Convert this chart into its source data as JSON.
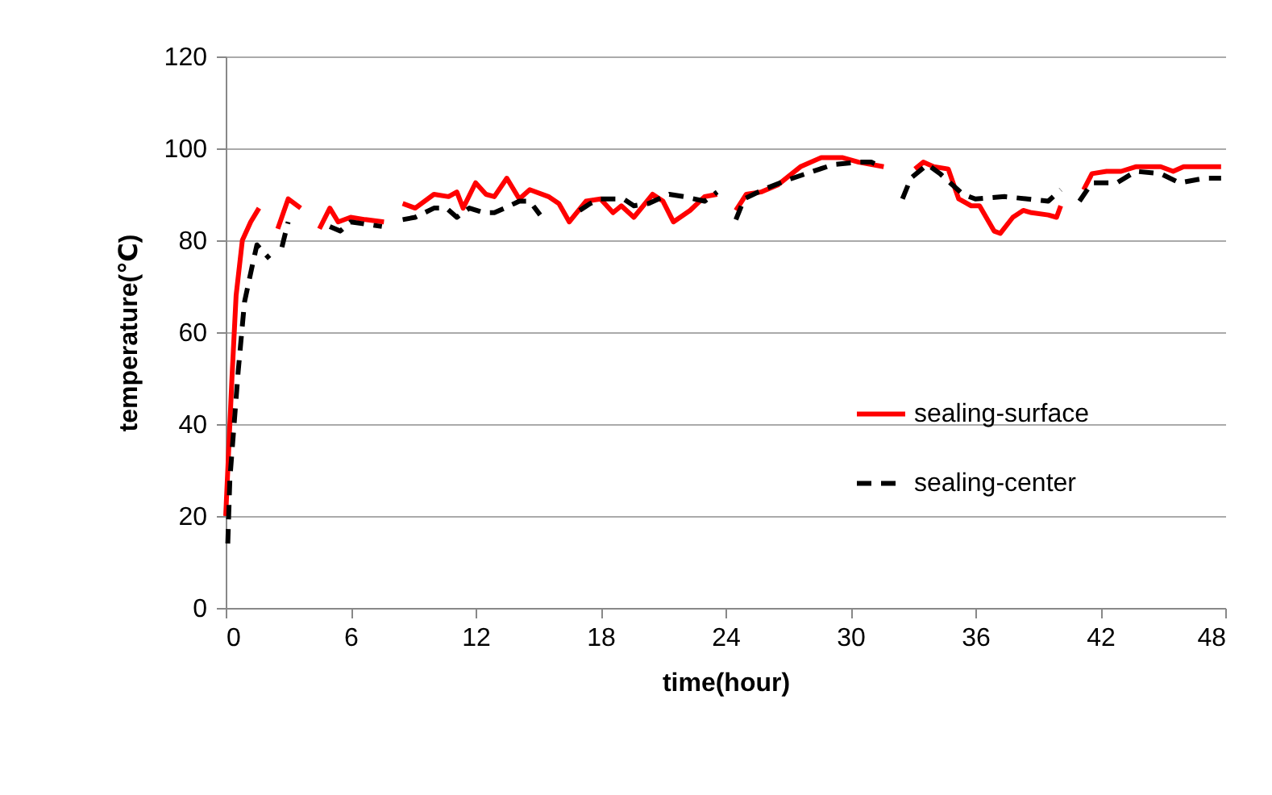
{
  "chart_data": {
    "type": "line",
    "xlabel": "time(hour)",
    "ylabel": "temperature(℃)",
    "xlim": [
      0,
      48
    ],
    "xticks": [
      0,
      6,
      12,
      18,
      24,
      30,
      36,
      42,
      48
    ],
    "ylim": [
      0,
      120
    ],
    "yticks": [
      0,
      20,
      40,
      60,
      80,
      100,
      120
    ],
    "grid": "y",
    "legend": "right",
    "marker": "none",
    "series": [
      {
        "name": "sealing-surface",
        "color": "#ff0000",
        "line_style": "solid",
        "x": [
          0,
          0.3,
          0.5,
          0.8,
          1.2,
          1.6,
          2,
          2.5,
          3,
          3.6,
          4,
          4.5,
          5,
          5.4,
          6,
          6.7,
          7.6,
          8,
          8.5,
          9.1,
          10,
          10.7,
          11.1,
          11.4,
          12,
          12.5,
          12.9,
          13.5,
          14.1,
          14.6,
          15.5,
          16,
          16.5,
          17.3,
          18,
          18.6,
          19,
          19.6,
          20.5,
          21,
          21.5,
          22.3,
          23,
          23.6,
          24,
          24.5,
          25,
          25.7,
          26.5,
          27.6,
          28.6,
          29.6,
          30.4,
          31.6,
          32.5,
          33.1,
          33.5,
          34,
          34.7,
          35.2,
          35.8,
          36.2,
          36.9,
          37.2,
          37.8,
          38.3,
          38.7,
          39.5,
          39.9,
          40.1,
          40.7,
          41.2,
          41.6,
          42.3,
          43,
          43.7,
          44.9,
          45.5,
          46,
          47.8
        ],
        "values": [
          20,
          50,
          68,
          80,
          84,
          87,
          null,
          82.5,
          89,
          87,
          null,
          82.5,
          87,
          84,
          85,
          84.5,
          84,
          null,
          88,
          87,
          90,
          89.5,
          90.5,
          87,
          92.5,
          90,
          89.5,
          93.5,
          89,
          91,
          89.5,
          88,
          84,
          88.5,
          89,
          86,
          87.5,
          85,
          90,
          88.5,
          84,
          86.5,
          89.5,
          90,
          null,
          86.5,
          90,
          90.5,
          92,
          96,
          98,
          98,
          97,
          96,
          null,
          95.5,
          97,
          96,
          95.5,
          89,
          87.5,
          87.5,
          82,
          81.5,
          85,
          86.5,
          86,
          85.5,
          85,
          87.5,
          null,
          91,
          94.5,
          95,
          95,
          96,
          96,
          95,
          96,
          96
        ]
      },
      {
        "name": "sealing-center",
        "color": "#000000",
        "line_style": "dashed",
        "x": [
          0.1,
          0.2,
          0.6,
          0.9,
          1.3,
          1.5,
          2.1,
          2.4,
          2.7,
          3,
          4,
          5,
          5.5,
          6,
          7.5,
          8,
          8.5,
          9.1,
          10,
          10.6,
          11.1,
          11.7,
          12.4,
          12.9,
          13.4,
          14.1,
          14.6,
          15.1,
          16,
          17,
          17.5,
          18,
          19.1,
          19.6,
          20.3,
          21.3,
          22,
          23,
          23.6,
          24,
          24.5,
          24.9,
          25.8,
          26.9,
          28.2,
          29.2,
          30.4,
          31,
          31.5,
          32,
          32.5,
          32.9,
          33.7,
          34.3,
          35.4,
          36,
          37.4,
          38.5,
          39.5,
          40.1,
          40.5,
          41,
          41.6,
          42.8,
          43.7,
          44.9,
          45.8,
          47,
          47.8
        ],
        "values": [
          14,
          28,
          51.5,
          66.5,
          75,
          79,
          76,
          null,
          78.5,
          84,
          null,
          83,
          82,
          84,
          83,
          null,
          84.5,
          85,
          87,
          87,
          85,
          87,
          86,
          86,
          87,
          88.5,
          88.5,
          85.5,
          null,
          86.5,
          88,
          89,
          89,
          87.5,
          88,
          90,
          89.5,
          88.5,
          90.5,
          null,
          84.5,
          89,
          91,
          93,
          95,
          96.5,
          97,
          97,
          96,
          null,
          89,
          93.5,
          96.5,
          94.5,
          90,
          89,
          89.5,
          89,
          88.5,
          91,
          null,
          88.5,
          92.5,
          92.5,
          95,
          94.5,
          92.5,
          93.5,
          93.5
        ]
      }
    ]
  }
}
